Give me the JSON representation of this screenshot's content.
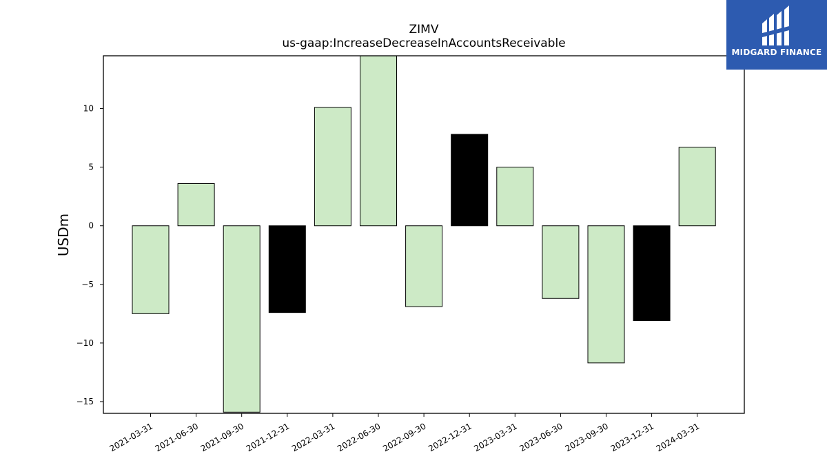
{
  "chart_data": {
    "type": "bar",
    "title": "ZIMV",
    "subtitle": "us-gaap:IncreaseDecreaseInAccountsReceivable",
    "xlabel": "",
    "ylabel": "USDm",
    "ylim": [
      -16,
      14.5
    ],
    "yticks": [
      -15,
      -10,
      -5,
      0,
      5,
      10
    ],
    "categories": [
      "2021-03-31",
      "2021-06-30",
      "2021-09-30",
      "2021-12-31",
      "2022-03-31",
      "2022-06-30",
      "2022-09-30",
      "2022-12-31",
      "2023-03-31",
      "2023-06-30",
      "2023-09-30",
      "2023-12-31",
      "2024-03-31"
    ],
    "values": [
      -7.5,
      3.6,
      -15.9,
      -7.4,
      10.1,
      14.5,
      -6.9,
      7.8,
      5.0,
      -6.2,
      -11.7,
      -8.1,
      6.7
    ],
    "colors": [
      "#cdeac6",
      "#cdeac6",
      "#cdeac6",
      "#000000",
      "#cdeac6",
      "#cdeac6",
      "#cdeac6",
      "#000000",
      "#cdeac6",
      "#cdeac6",
      "#cdeac6",
      "#000000",
      "#cdeac6"
    ],
    "grid": false,
    "legend": "none"
  },
  "logo": {
    "text": "MIDGARD FINANCE",
    "background": "#2d5bb0"
  }
}
